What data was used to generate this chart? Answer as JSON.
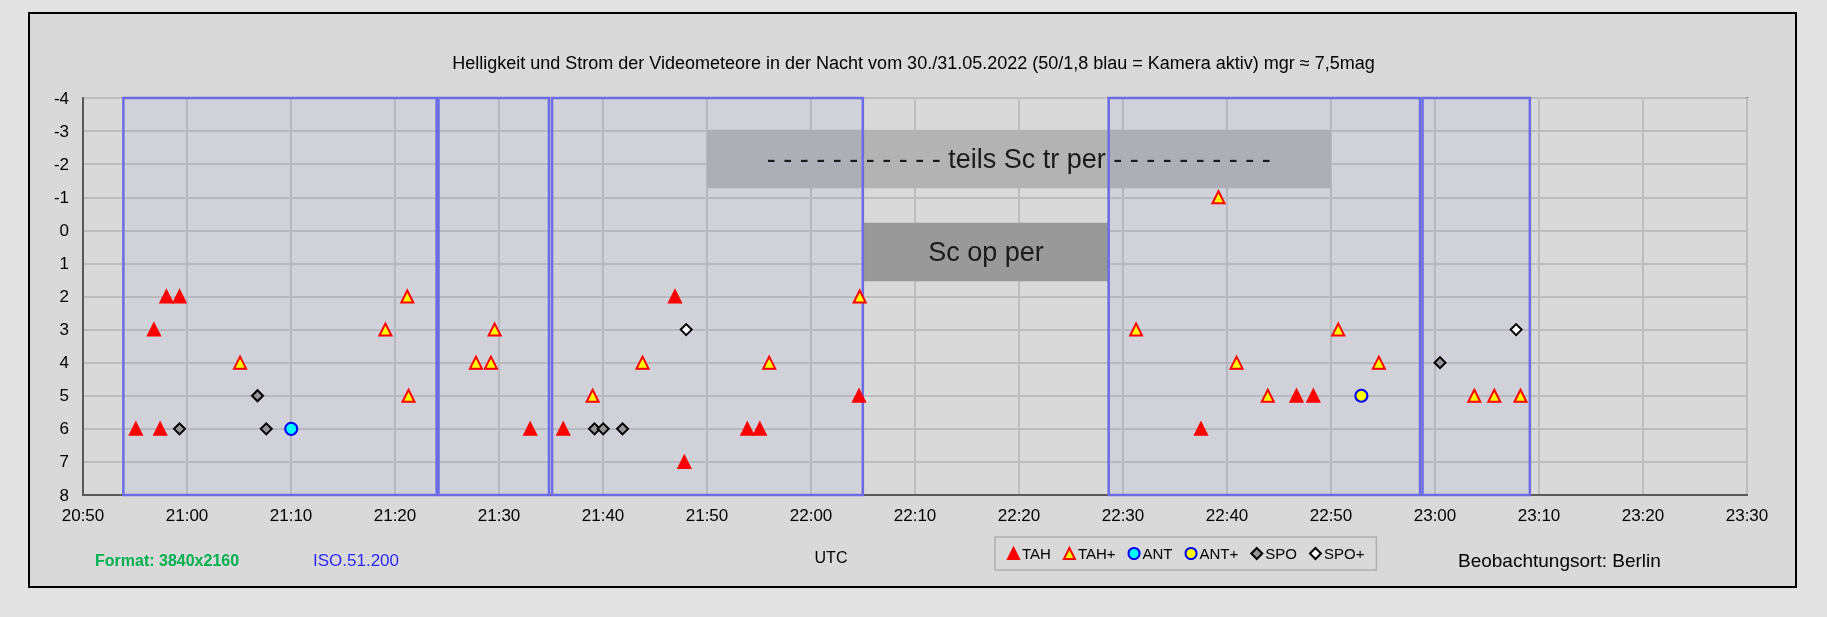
{
  "chart_data": {
    "type": "scatter",
    "title": "Helligkeit und Strom der Videometeore in der Nacht vom 30./31.05.2022 (50/1,8 blau = Kamera aktiv) mgr ≈ 7,5mag",
    "xlabel": "UTC",
    "annotations": [
      "Format: 3840x2160",
      "ISO.51.200",
      "Beobachtungsort: Berlin"
    ],
    "xlim": [
      20.8333,
      23.5
    ],
    "xticks": [
      {
        "value": 20.8333,
        "label": "20:50"
      },
      {
        "value": 21,
        "label": "21:00"
      },
      {
        "value": 21.1667,
        "label": "21:10"
      },
      {
        "value": 21.3333,
        "label": "21:20"
      },
      {
        "value": 21.5,
        "label": "21:30"
      },
      {
        "value": 21.6667,
        "label": "21:40"
      },
      {
        "value": 21.8333,
        "label": "21:50"
      },
      {
        "value": 22,
        "label": "22:00"
      },
      {
        "value": 22.1667,
        "label": "22:10"
      },
      {
        "value": 22.3333,
        "label": "22:20"
      },
      {
        "value": 22.5,
        "label": "22:30"
      },
      {
        "value": 22.6667,
        "label": "22:40"
      },
      {
        "value": 22.8333,
        "label": "22:50"
      },
      {
        "value": 23,
        "label": "23:00"
      },
      {
        "value": 23.1667,
        "label": "23:10"
      },
      {
        "value": 23.3333,
        "label": "23:20"
      },
      {
        "value": 23.5,
        "label": "23:30"
      }
    ],
    "ylim": [
      8,
      -4
    ],
    "yticks": [
      -4,
      -3,
      -2,
      -1,
      0,
      1,
      2,
      3,
      4,
      5,
      6,
      7,
      8
    ],
    "grid": true,
    "legend": "bottom",
    "bands": [
      {
        "axis": "x",
        "from": 20.898,
        "to": 21.4,
        "label": null,
        "color": "#6b6be6"
      },
      {
        "axis": "x",
        "from": 21.403,
        "to": 21.58,
        "label": null,
        "color": "#6b6be6"
      },
      {
        "axis": "x",
        "from": 21.585,
        "to": 22.083,
        "label": null,
        "color": "#6b6be6"
      },
      {
        "axis": "x",
        "from": 22.477,
        "to": 22.976,
        "label": null,
        "color": "#6b6be6"
      },
      {
        "axis": "x",
        "from": 22.98,
        "to": 23.152,
        "label": null,
        "color": "#6b6be6"
      },
      {
        "axis": "x",
        "from": 21.833,
        "to": 22.833,
        "label": "- - - - - - - - - - - teils Sc tr per - - - - - - - - - -",
        "color": "#b3b3b3"
      },
      {
        "axis": "x",
        "from": 22.083,
        "to": 22.478,
        "label": "Sc op per",
        "color": "#999999"
      }
    ],
    "series": [
      {
        "name": "TAH",
        "color": "#ff0000",
        "marker": "triangle",
        "x": [
          20.918,
          20.947,
          20.957,
          20.967,
          20.988,
          21.55,
          21.603,
          21.782,
          21.797,
          21.898,
          21.918,
          22.077,
          22.625,
          22.778,
          22.805
        ],
        "values": [
          6,
          3,
          6,
          2,
          2,
          6,
          6,
          2,
          7,
          6,
          6,
          5,
          6,
          5,
          5
        ]
      },
      {
        "name": "TAH+",
        "color": "#ffff00",
        "marker": "triangle",
        "x": [
          21.085,
          21.318,
          21.353,
          21.355,
          21.463,
          21.487,
          21.493,
          21.65,
          21.73,
          21.933,
          22.078,
          22.521,
          22.653,
          22.682,
          22.732,
          22.845,
          22.91,
          23.063,
          23.095,
          23.137
        ],
        "values": [
          4,
          3,
          2,
          5,
          4,
          4,
          3,
          5,
          4,
          4,
          2,
          3,
          -1,
          4,
          5,
          3,
          4,
          5,
          5,
          5
        ]
      },
      {
        "name": "ANT",
        "color": "#00ffff",
        "marker": "circle",
        "x": [
          21.167
        ],
        "values": [
          6
        ]
      },
      {
        "name": "ANT+",
        "color": "#ffff00",
        "marker": "circle",
        "x": [
          22.882
        ],
        "values": [
          5
        ]
      },
      {
        "name": "SPO",
        "color": "#969696",
        "marker": "diamond",
        "x": [
          20.988,
          21.113,
          21.127,
          21.653,
          21.667,
          21.698,
          23.008
        ],
        "values": [
          6,
          5,
          6,
          6,
          6,
          6,
          4
        ]
      },
      {
        "name": "SPO+",
        "color": "#ffffff",
        "marker": "diamond",
        "x": [
          21.8,
          23.13
        ],
        "values": [
          3,
          3
        ]
      }
    ]
  }
}
